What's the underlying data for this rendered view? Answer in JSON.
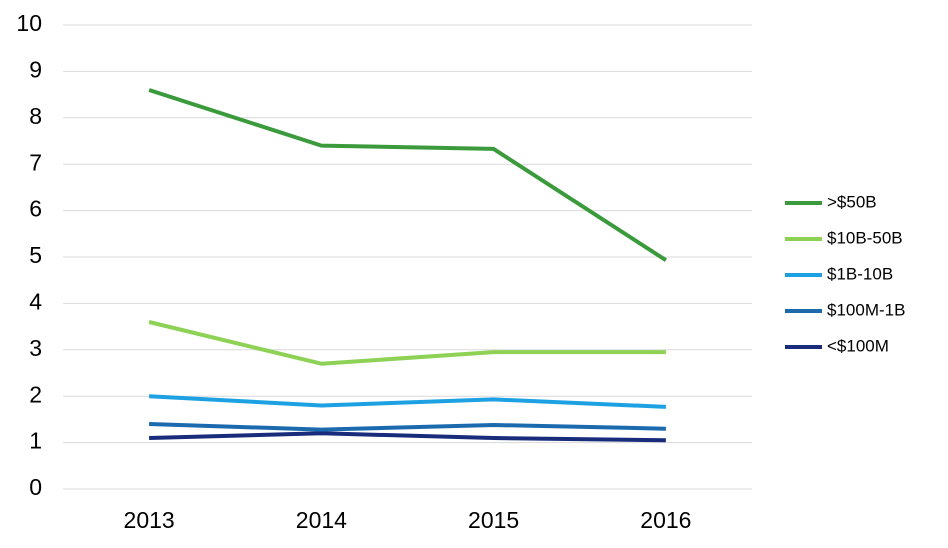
{
  "chart_data": {
    "type": "line",
    "title": "",
    "xlabel": "",
    "ylabel": "",
    "categories": [
      "2013",
      "2014",
      "2015",
      "2016"
    ],
    "ylim": [
      0,
      10
    ],
    "yticks": [
      "0",
      "1",
      "2",
      "3",
      "4",
      "5",
      "6",
      "7",
      "8",
      "9",
      "10"
    ],
    "grid": true,
    "legend_position": "right",
    "series": [
      {
        "name": ">$50B",
        "color": "#3a9a3c",
        "values": [
          8.6,
          7.4,
          7.33,
          4.93
        ]
      },
      {
        "name": "$10B-50B",
        "color": "#8dd155",
        "values": [
          3.6,
          2.7,
          2.95,
          2.95
        ]
      },
      {
        "name": "$1B-10B",
        "color": "#1ea1e3",
        "values": [
          2.0,
          1.8,
          1.93,
          1.77
        ]
      },
      {
        "name": "$100M-1B",
        "color": "#1b6aad",
        "values": [
          1.4,
          1.28,
          1.38,
          1.3
        ]
      },
      {
        "name": "<$100M",
        "color": "#182c7b",
        "values": [
          1.1,
          1.2,
          1.1,
          1.05
        ]
      }
    ]
  }
}
